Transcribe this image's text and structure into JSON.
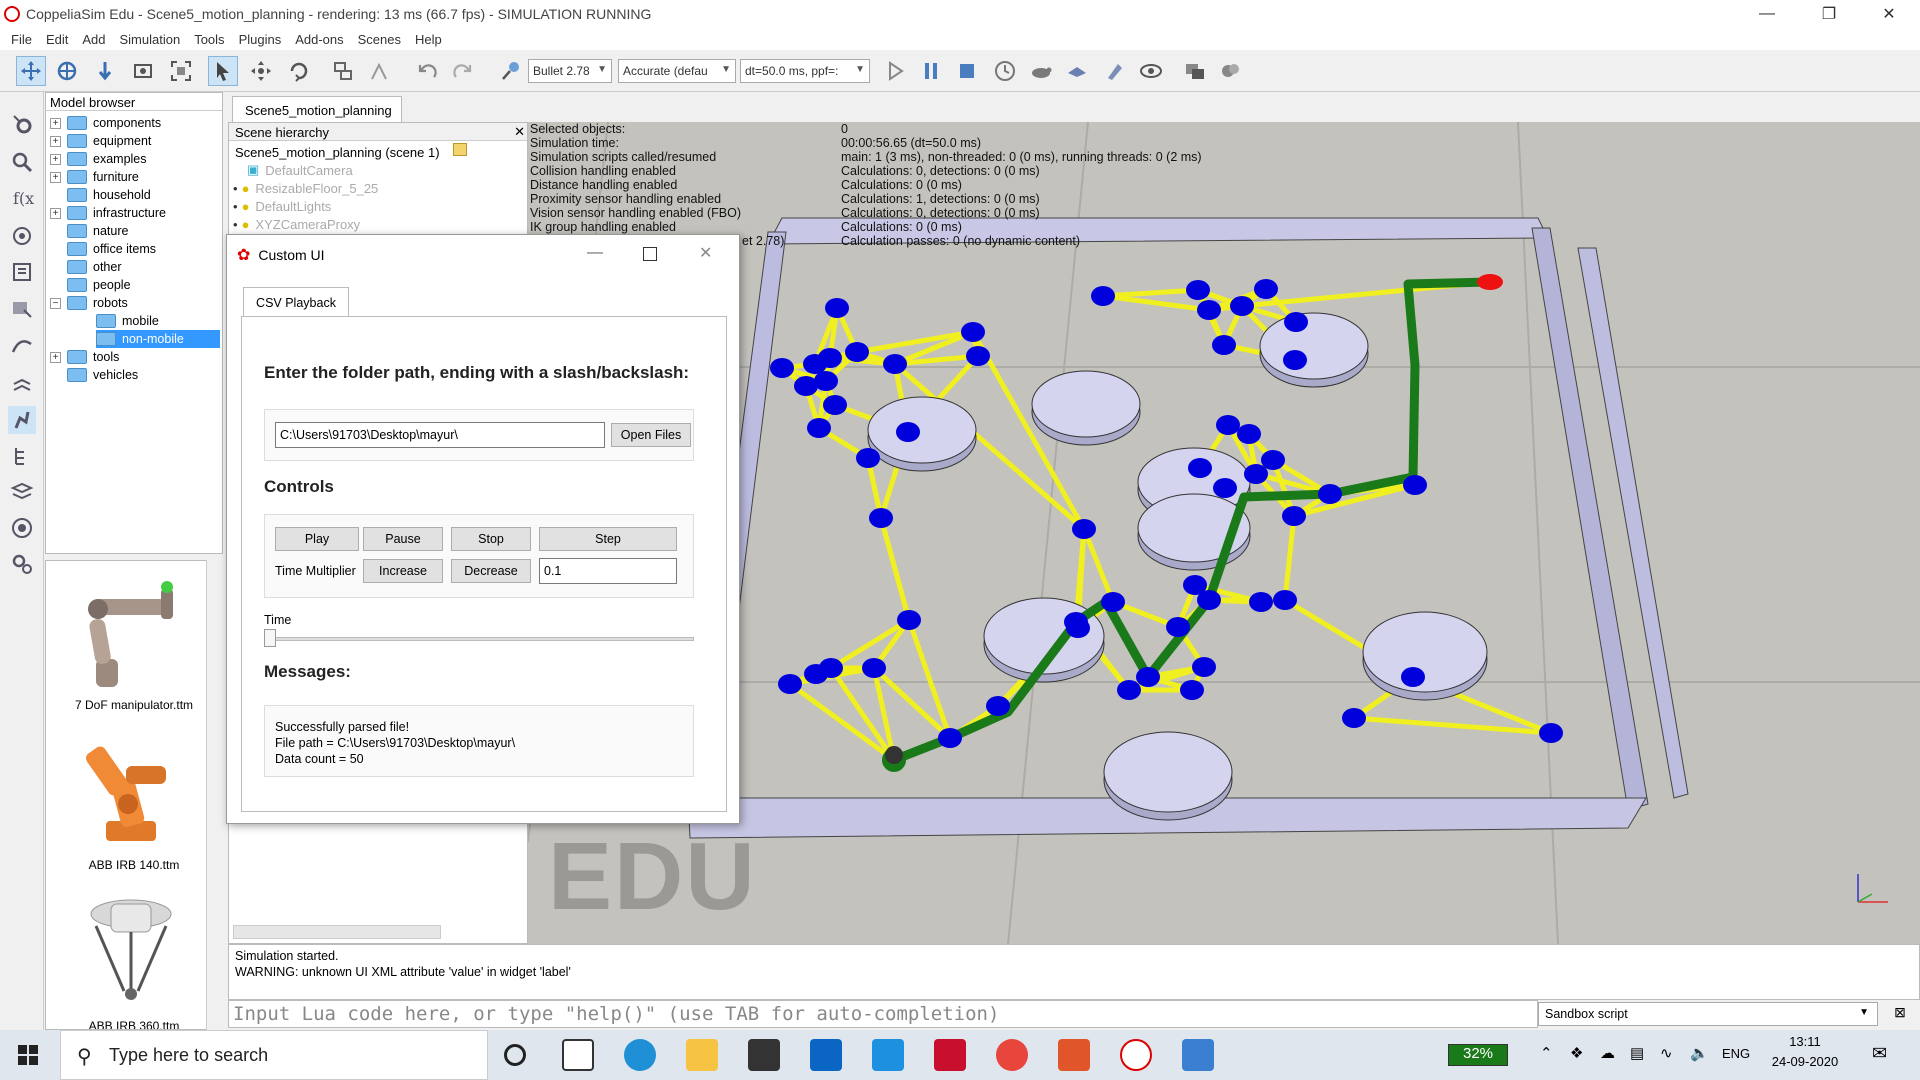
{
  "window": {
    "title": "CoppeliaSim Edu - Scene5_motion_planning - rendering: 13 ms (66.7 fps) - SIMULATION RUNNING"
  },
  "menu": [
    "File",
    "Edit",
    "Add",
    "Simulation",
    "Tools",
    "Plugins",
    "Add-ons",
    "Scenes",
    "Help"
  ],
  "toolbar": {
    "engine": "Bullet 2.78",
    "accuracy": "Accurate (defau",
    "timestep": "dt=50.0 ms, ppf=:"
  },
  "model_browser": {
    "header": "Model browser",
    "items": [
      {
        "label": "components",
        "expand": "+"
      },
      {
        "label": "equipment",
        "expand": "+"
      },
      {
        "label": "examples",
        "expand": "+"
      },
      {
        "label": "furniture",
        "expand": "+"
      },
      {
        "label": "household",
        "expand": ""
      },
      {
        "label": "infrastructure",
        "expand": "+"
      },
      {
        "label": "nature",
        "expand": ""
      },
      {
        "label": "office items",
        "expand": ""
      },
      {
        "label": "other",
        "expand": ""
      },
      {
        "label": "people",
        "expand": ""
      },
      {
        "label": "robots",
        "expand": "−"
      },
      {
        "label": "mobile",
        "expand": ""
      },
      {
        "label": "non-mobile",
        "expand": ""
      },
      {
        "label": "tools",
        "expand": "+"
      },
      {
        "label": "vehicles",
        "expand": ""
      }
    ],
    "thumbnails": [
      "7 DoF manipulator.ttm",
      "ABB IRB 140.ttm",
      "ABB IRB 360.ttm"
    ]
  },
  "scene": {
    "tab": "Scene5_motion_planning",
    "hierarchy_header": "Scene hierarchy",
    "root": "Scene5_motion_planning (scene 1)",
    "items": [
      "DefaultCamera",
      "ResizableFloor_5_25",
      "DefaultLights",
      "XYZCameraProxy"
    ]
  },
  "stats": {
    "labels": [
      "Selected objects:",
      "Simulation time:",
      "Simulation scripts called/resumed",
      "Collision handling enabled",
      "Distance handling enabled",
      "Proximity sensor handling enabled",
      "Vision sensor handling enabled (FBO)",
      "IK group handling enabled",
      "et 2.78)"
    ],
    "values": [
      "0",
      "00:00:56.65 (dt=50.0 ms)",
      "main: 1 (3 ms), non-threaded: 0 (0 ms), running threads: 0 (2 ms)",
      "Calculations: 0, detections: 0 (0 ms)",
      "Calculations: 0 (0 ms)",
      "Calculations: 1, detections: 0 (0 ms)",
      "Calculations: 0, detections: 0 (0 ms)",
      "Calculations: 0 (0 ms)",
      "Calculation passes: 0 (no dynamic content)"
    ],
    "watermark": "EDU"
  },
  "dialog": {
    "title": "Custom UI",
    "tab": "CSV Playback",
    "folder_heading": "Enter the folder path, ending with a slash/backslash:",
    "folder_value": "C:\\Users\\91703\\Desktop\\mayur\\",
    "open_files": "Open Files",
    "controls_heading": "Controls",
    "play": "Play",
    "pause": "Pause",
    "stop": "Stop",
    "step": "Step",
    "time_multiplier_label": "Time Multiplier",
    "increase": "Increase",
    "decrease": "Decrease",
    "time_multiplier_value": "0.1",
    "time_label": "Time",
    "time_slider_value": 0,
    "messages_heading": "Messages:",
    "messages": [
      "Successfully parsed file!",
      "File path = C:\\Users\\91703\\Desktop\\mayur\\",
      "Data count = 50"
    ]
  },
  "console": {
    "lines": [
      "Simulation started.",
      "WARNING: unknown UI XML attribute 'value' in widget 'label'"
    ],
    "input_placeholder": "Input Lua code here, or type \"help()\" (use TAB for auto-completion)",
    "script_selector": "Sandbox script"
  },
  "taskbar": {
    "search_placeholder": "Type here to search",
    "battery": "32%",
    "language": "ENG",
    "time": "13:11",
    "date": "24-09-2020"
  },
  "colors": {
    "node": "#0000dd",
    "edge": "#eeee22",
    "path": "#1a7a1a",
    "goal": "#ee1111",
    "obstacle": "#d4d4ee",
    "wall": "#b8b8dd",
    "selection": "#3399ff"
  }
}
